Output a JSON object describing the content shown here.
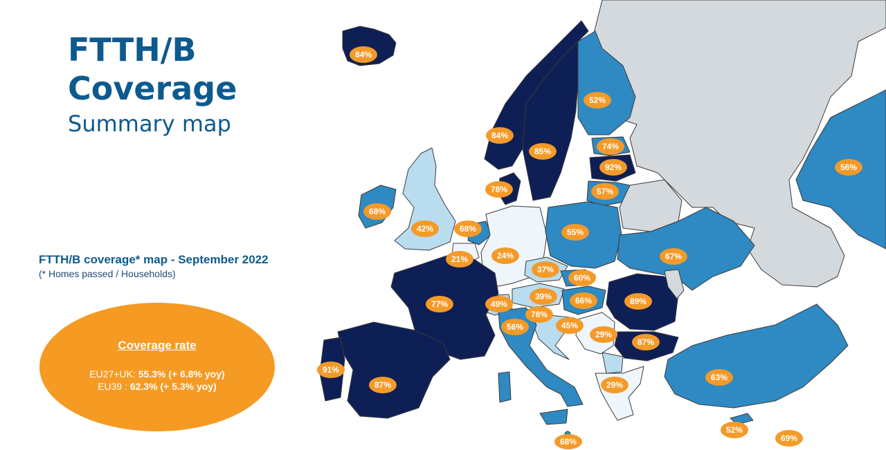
{
  "title": {
    "line1": "FTTH/B",
    "line2": "Coverage",
    "line3": "Summary map"
  },
  "map_label": {
    "heading": "FTTH/B coverage* map - September 2022",
    "subheading": "(* Homes passed / Households)"
  },
  "coverage": {
    "title": "Coverage rate",
    "eu27_label": "EU27+UK: ",
    "eu27_value": "55.3% (+ 6.8% yoy)",
    "eu39_label": "EU39 : ",
    "eu39_value": "62.3% (+ 5.3% yoy)"
  },
  "colors": {
    "dark_navy": "#0e1f55",
    "mid_blue": "#2f89c2",
    "light_blue": "#b9dcef",
    "very_light": "#eef6fb",
    "grey": "#d4d9dd",
    "bubble": "#f39a28",
    "title_blue": "#0d5a8e"
  },
  "map": {
    "regions": [
      {
        "label": "84%",
        "color": "#0e1f55"
      },
      {
        "label": "52%",
        "color": "#2f89c2"
      },
      {
        "label": "84%",
        "color": "#0e1f55"
      },
      {
        "label": "85%",
        "color": "#0e1f55"
      },
      {
        "label": "74%",
        "color": "#2f89c2"
      },
      {
        "label": "92%",
        "color": "#0e1f55"
      },
      {
        "label": "57%",
        "color": "#2f89c2"
      },
      {
        "label": "56%",
        "color": "#2f89c2"
      },
      {
        "label": "78%",
        "color": "#0e1f55"
      },
      {
        "label": "68%",
        "color": "#2f89c2"
      },
      {
        "label": "42%",
        "color": "#b9dcef"
      },
      {
        "label": "68%",
        "color": "#2f89c2"
      },
      {
        "label": "55%",
        "color": "#2f89c2"
      },
      {
        "label": "21%",
        "color": "#eef6fb"
      },
      {
        "label": "24%",
        "color": "#eef6fb"
      },
      {
        "label": "67%",
        "color": "#2f89c2"
      },
      {
        "label": "37%",
        "color": "#b9dcef"
      },
      {
        "label": "60%",
        "color": "#2f89c2"
      },
      {
        "label": "77%",
        "color": "#0e1f55"
      },
      {
        "label": "49%",
        "color": "#b9dcef"
      },
      {
        "label": "39%",
        "color": "#b9dcef"
      },
      {
        "label": "66%",
        "color": "#2f89c2"
      },
      {
        "label": "89%",
        "color": "#0e1f55"
      },
      {
        "label": "78%",
        "color": "#0e1f55"
      },
      {
        "label": "56%",
        "color": "#2f89c2"
      },
      {
        "label": "45%",
        "color": "#b9dcef"
      },
      {
        "label": "29%",
        "color": "#eef6fb"
      },
      {
        "label": "87%",
        "color": "#0e1f55"
      },
      {
        "label": "91%",
        "color": "#0e1f55"
      },
      {
        "label": "87%",
        "color": "#0e1f55"
      },
      {
        "label": "29%",
        "color": "#eef6fb"
      },
      {
        "label": "63%",
        "color": "#2f89c2"
      },
      {
        "label": "52%",
        "color": "#2f89c2"
      },
      {
        "label": "69%",
        "color": "#2f89c2"
      },
      {
        "label": "68%",
        "color": "#2f89c2"
      }
    ]
  }
}
